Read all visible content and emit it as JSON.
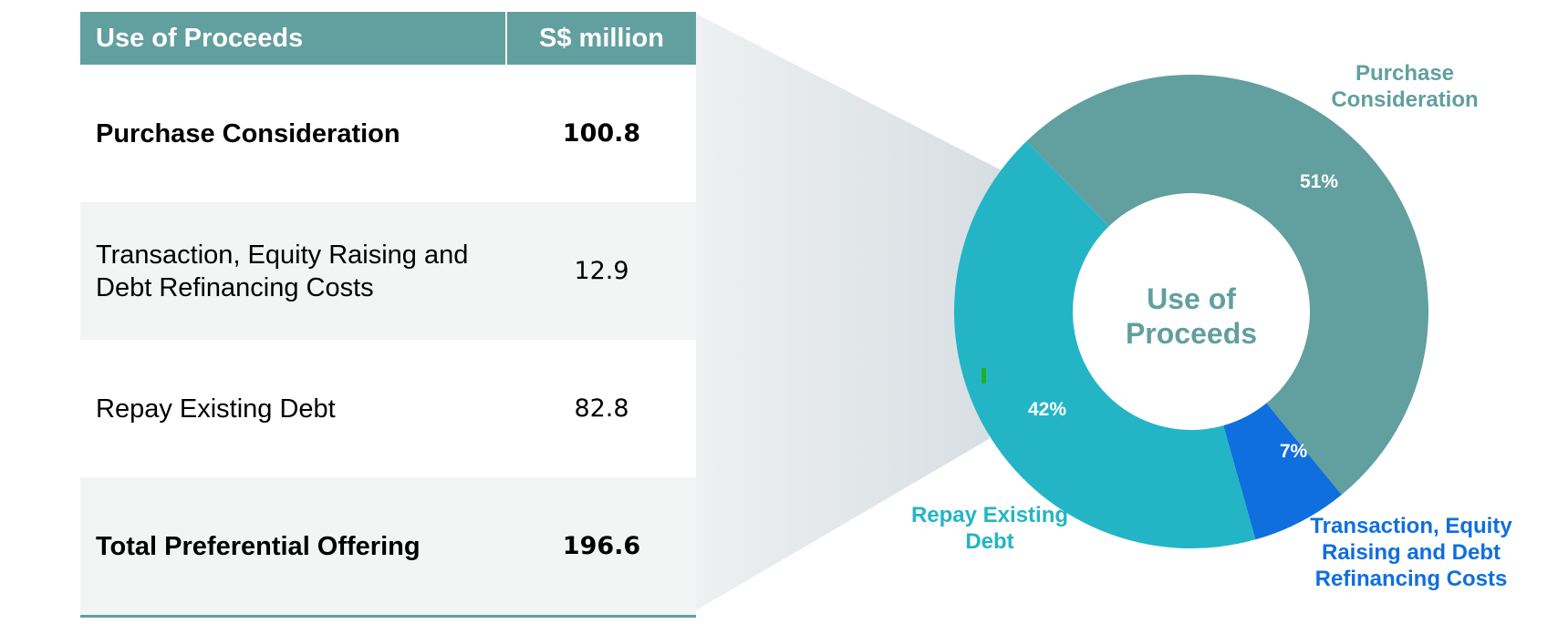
{
  "table": {
    "headers": [
      "Use of Proceeds",
      "S$ million"
    ],
    "rows": [
      {
        "label": "Purchase Consideration",
        "value": "100.8",
        "bold": true
      },
      {
        "label": "Transaction, Equity Raising and Debt Refinancing Costs",
        "value": "12.9",
        "bold": false
      },
      {
        "label": "Repay Existing Debt",
        "value": "82.8",
        "bold": false
      },
      {
        "label": "Total Preferential Offering",
        "value": "196.6",
        "bold": true
      }
    ]
  },
  "chart_data": {
    "type": "pie",
    "subtype": "donut",
    "center_label": [
      "Use of",
      "Proceeds"
    ],
    "series": [
      {
        "name": "Purchase Consideration",
        "label_lines": [
          "Purchase",
          "Consideration"
        ],
        "value": 100.8,
        "percent_label": "51%",
        "color": "#629f9f",
        "label_color": "#629f9f"
      },
      {
        "name": "Transaction, Equity Raising and Debt Refinancing Costs",
        "label_lines": [
          "Transaction, Equity",
          "Raising and Debt",
          "Refinancing Costs"
        ],
        "value": 12.9,
        "percent_label": "7%",
        "color": "#0f6fde",
        "label_color": "#0f6fde"
      },
      {
        "name": "Repay Existing Debt",
        "label_lines": [
          "Repay Existing",
          "Debt"
        ],
        "value": 82.8,
        "percent_label": "42%",
        "color": "#23b5c5",
        "label_color": "#23b5c5"
      }
    ],
    "start_angle_deg": -44,
    "percent_color": "#ffffff",
    "center_color": "#629f9f"
  }
}
